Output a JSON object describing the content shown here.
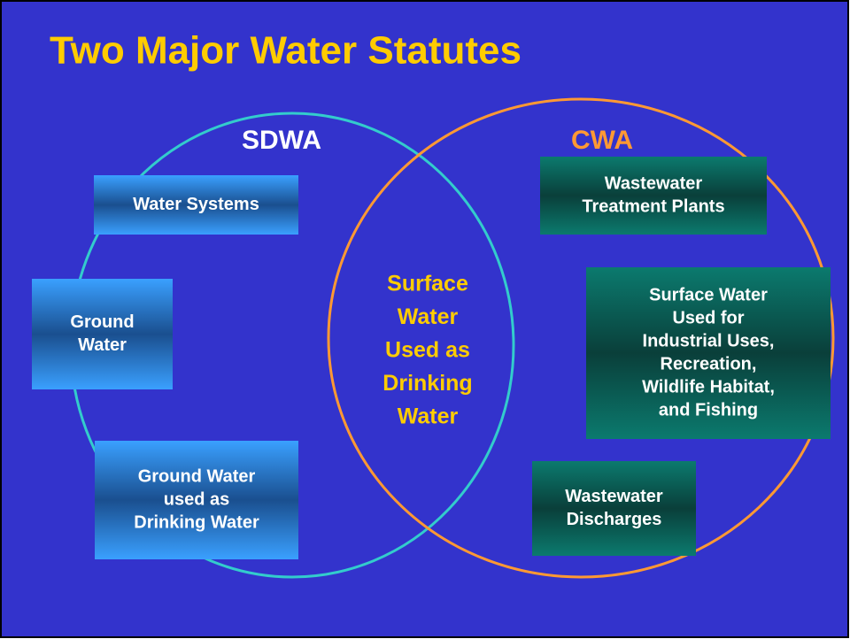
{
  "title": "Two Major Water Statutes",
  "left_label": "SDWA",
  "right_label": "CWA",
  "center_lines": [
    "Surface",
    "Water",
    "Used as",
    "Drinking",
    "Water"
  ],
  "boxes": [
    {
      "lines": [
        "Water Systems"
      ]
    },
    {
      "lines": [
        "Ground",
        "Water"
      ]
    },
    {
      "lines": [
        "Ground Water",
        "used as",
        "Drinking Water"
      ]
    },
    {
      "lines": [
        "Wastewater",
        "Treatment Plants"
      ]
    },
    {
      "lines": [
        "Surface Water",
        "Used for",
        "Industrial Uses,",
        "Recreation,",
        "Wildlife Habitat,",
        "and Fishing"
      ]
    },
    {
      "lines": [
        "Wastewater",
        "Discharges"
      ]
    }
  ]
}
